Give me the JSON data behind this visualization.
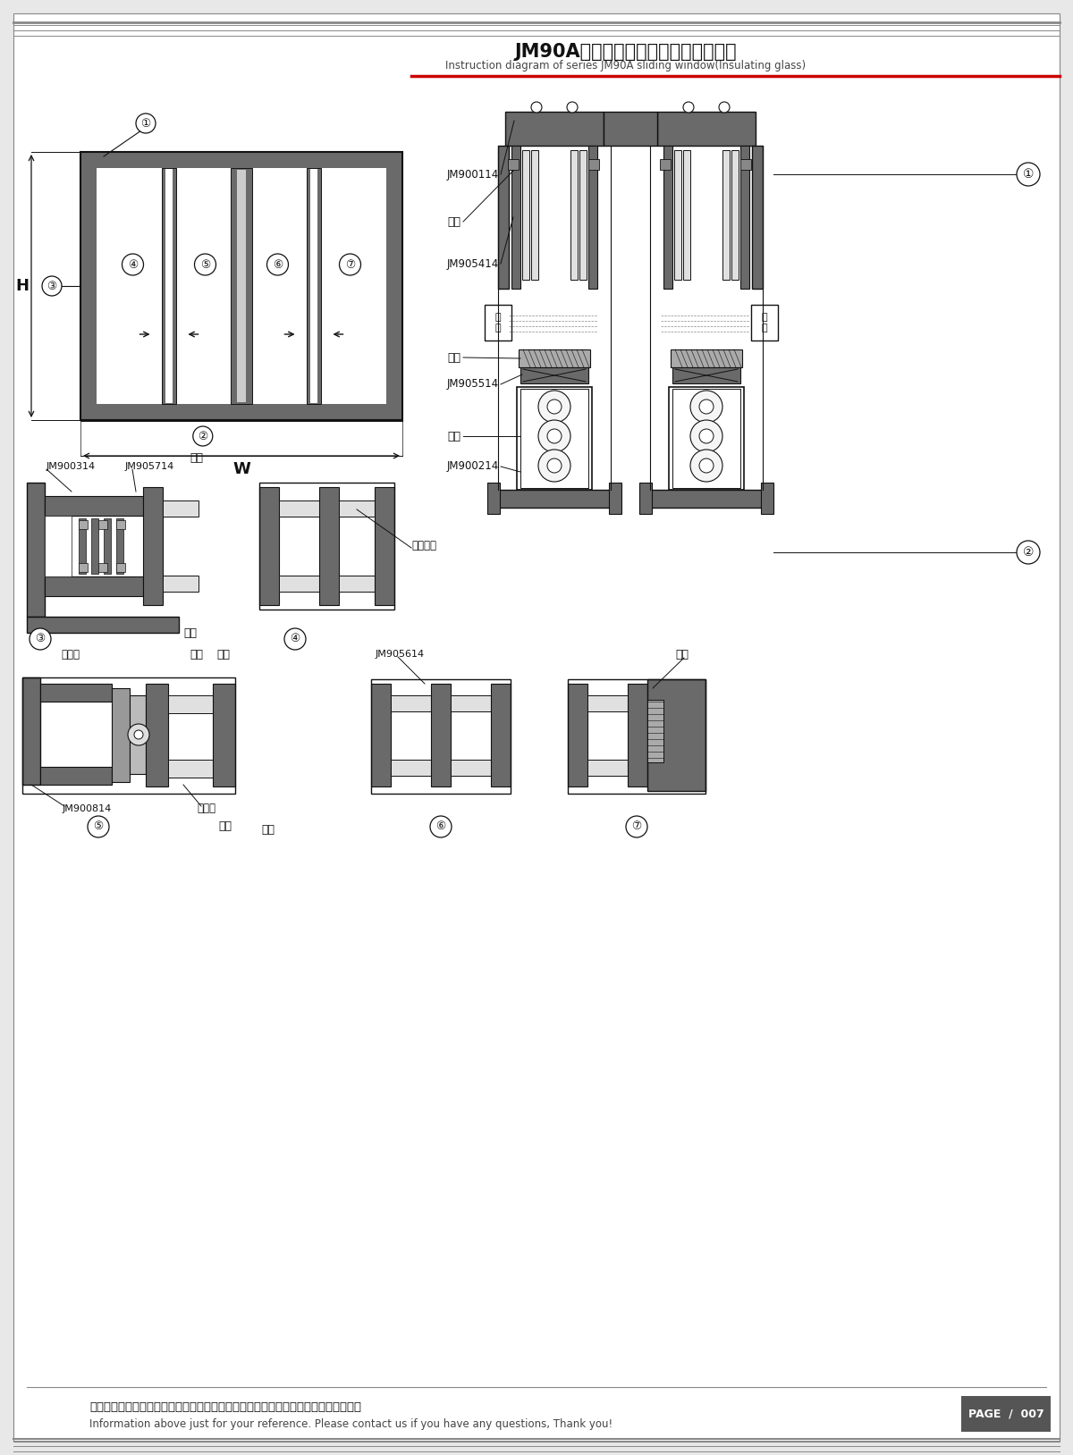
{
  "title_cn": "JM90A系列推拉窗结构图（中空玻璃）",
  "title_en": "Instruction diagram of series JM90A sliding window(Insulating glass)",
  "footer_cn": "图中所示型材截面、装配、编号、尺寸及重量仅供参考。如有疑问，请向本公司查询。",
  "footer_en": "Information above just for your reference. Please contact us if you have any questions, Thank you!",
  "page": "PAGE  /  007",
  "bg_color": "#e8e8e8",
  "paper_color": "#ffffff",
  "frame_color": "#6a6a6a",
  "dark": "#444444",
  "mid": "#888888",
  "light": "#cccccc",
  "black": "#111111",
  "red": "#cc0000",
  "glass_color": "#e0e0e0",
  "striped": "#b0b0b0"
}
